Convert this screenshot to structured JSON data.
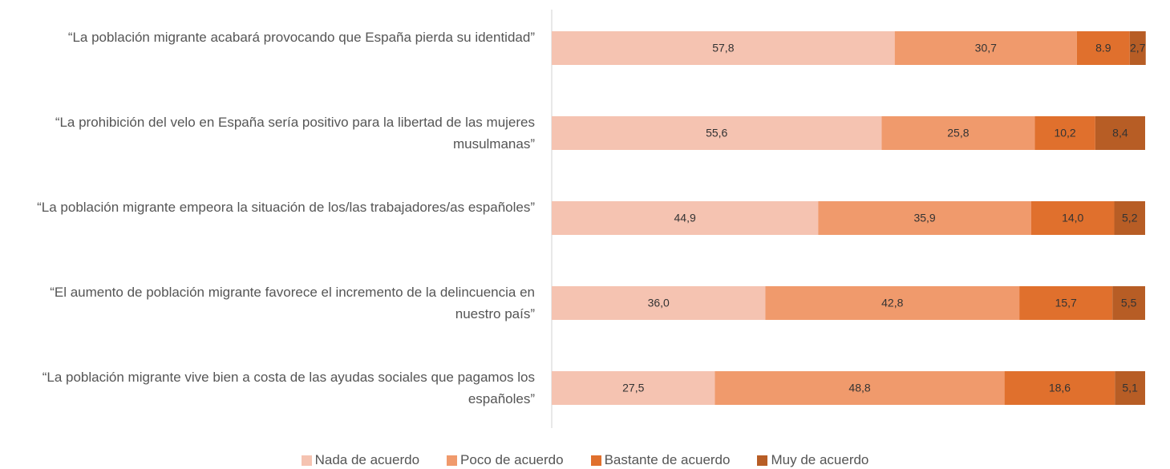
{
  "chart_data": {
    "type": "stacked_bar_horizontal",
    "categories": [
      "“La población migrante acabará provocando que España pierda su identidad”",
      "“La prohibición del velo en España sería positivo para la libertad de las mujeres musulmanas”",
      "“La población migrante empeora la situación de los/las trabajadores/as españoles”",
      "“El aumento de población migrante favorece el incremento de la delincuencia en nuestro país”",
      "“La población migrante vive bien a costa de las ayudas sociales que pagamos los españoles”"
    ],
    "series": [
      {
        "name": "Nada de acuerdo",
        "color": "#f5c3b1",
        "values": [
          57.8,
          55.6,
          44.9,
          36.0,
          27.5
        ],
        "value_labels": [
          "57,8",
          "55,6",
          "44,9",
          "36,0",
          "27,5"
        ]
      },
      {
        "name": "Poco de acuerdo",
        "color": "#f09a6c",
        "values": [
          30.7,
          25.8,
          35.9,
          42.8,
          48.8
        ],
        "value_labels": [
          "30,7",
          "25,8",
          "35,9",
          "42,8",
          "48,8"
        ]
      },
      {
        "name": "Bastante de acuerdo",
        "color": "#e0702d",
        "values": [
          8.9,
          10.2,
          14.0,
          15.7,
          18.6
        ],
        "value_labels": [
          "8.9",
          "10,2",
          "14,0",
          "15,7",
          "18,6"
        ]
      },
      {
        "name": "Muy de acuerdo",
        "color": "#b75d25",
        "values": [
          2.7,
          8.4,
          5.2,
          5.5,
          5.1
        ],
        "value_labels": [
          "2,7",
          "8,4",
          "5,2",
          "5,5",
          "5,1"
        ]
      }
    ],
    "xlim": [
      0,
      100
    ]
  }
}
